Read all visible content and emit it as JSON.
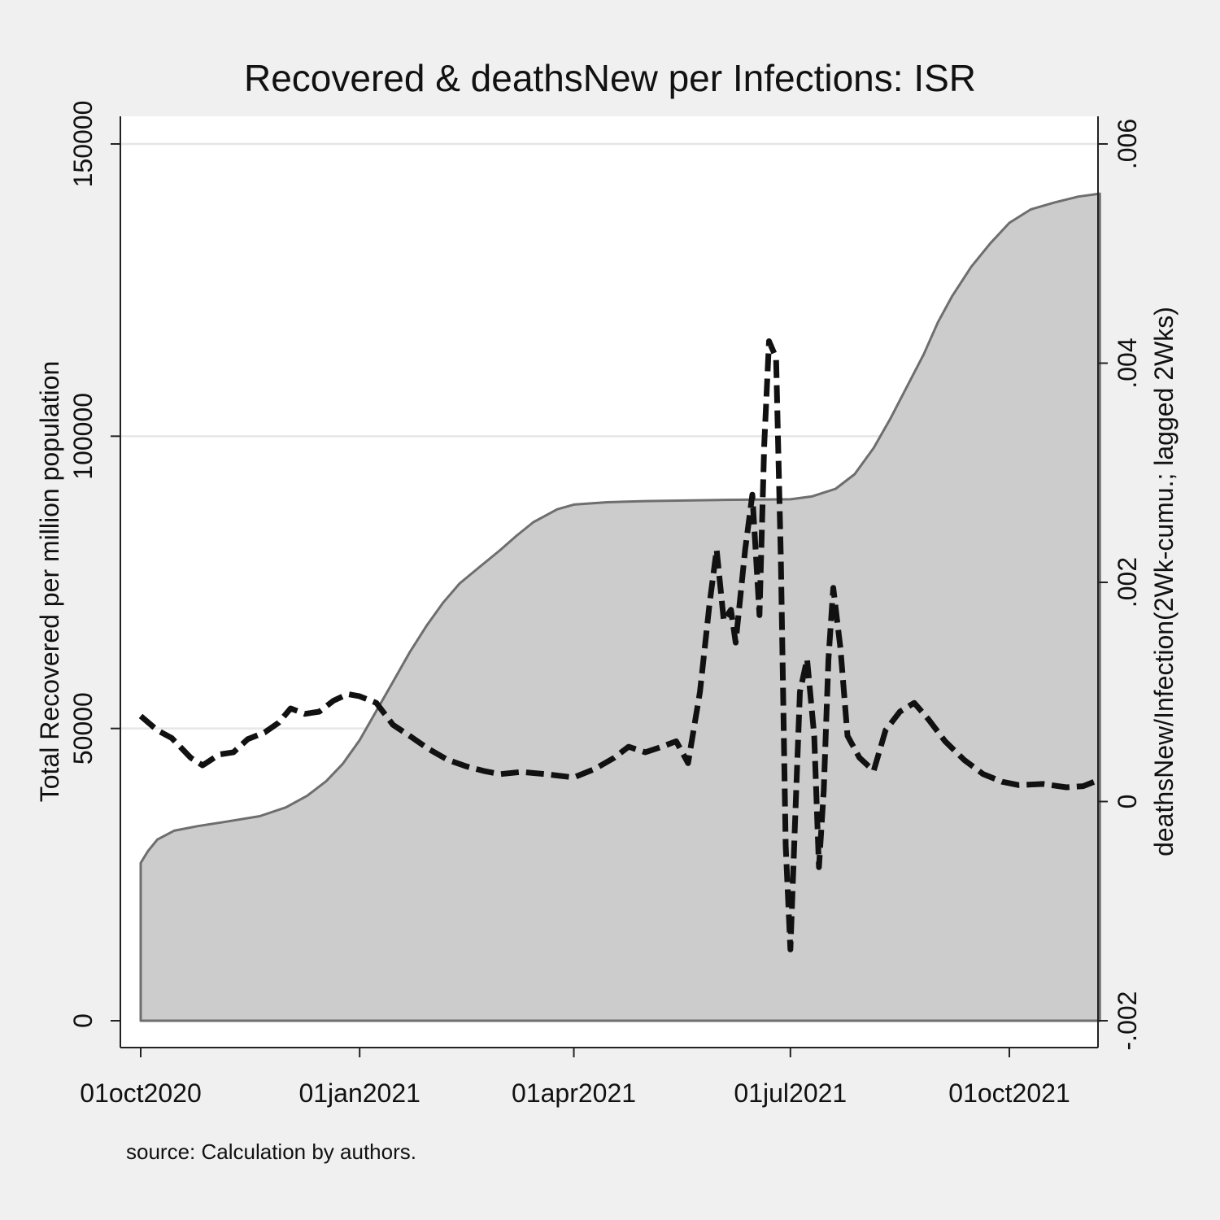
{
  "chart_data": {
    "type": "area+line",
    "title": "Recovered & deathsNew per Infections: ISR",
    "note": "source: Calculation by authors.",
    "y_left": {
      "label": "Total Recovered per million population",
      "range": [
        0,
        150000
      ],
      "ticks": [
        0,
        50000,
        100000,
        150000
      ],
      "tick_labels": [
        "0",
        "50000",
        "100000",
        "150000"
      ],
      "gridlines": true
    },
    "y_right": {
      "label": "deathsNew/Infection(2Wk-cumu.; lagged 2Wks)",
      "range": [
        -0.002,
        0.006
      ],
      "ticks": [
        -0.002,
        0,
        0.002,
        0.004,
        0.006
      ],
      "tick_labels": [
        "-.002",
        "0",
        ".002",
        ".004",
        ".006"
      ]
    },
    "x_axis": {
      "range": [
        "2020-10-01",
        "2021-11-08"
      ],
      "ticks": [
        "2020-10-01",
        "2021-01-01",
        "2021-04-01",
        "2021-07-01",
        "2021-10-01"
      ],
      "tick_labels": [
        "01oct2020",
        "01jan2021",
        "01apr2021",
        "01jul2021",
        "01oct2021"
      ]
    },
    "series": [
      {
        "name": "Total Recovered per million population",
        "type": "area",
        "axis": "left",
        "fill_color": "#cccccc",
        "line_color": "#6e6e6e",
        "points": [
          [
            "2020-10-01",
            27000
          ],
          [
            "2020-10-04",
            29000
          ],
          [
            "2020-10-08",
            31000
          ],
          [
            "2020-10-15",
            32500
          ],
          [
            "2020-10-25",
            33300
          ],
          [
            "2020-11-05",
            34000
          ],
          [
            "2020-11-20",
            35000
          ],
          [
            "2020-12-01",
            36500
          ],
          [
            "2020-12-10",
            38500
          ],
          [
            "2020-12-18",
            41000
          ],
          [
            "2020-12-25",
            44000
          ],
          [
            "2021-01-01",
            48000
          ],
          [
            "2021-01-08",
            53000
          ],
          [
            "2021-01-15",
            58000
          ],
          [
            "2021-01-22",
            63000
          ],
          [
            "2021-01-29",
            67500
          ],
          [
            "2021-02-05",
            71500
          ],
          [
            "2021-02-12",
            74800
          ],
          [
            "2021-02-20",
            77500
          ],
          [
            "2021-03-01",
            80500
          ],
          [
            "2021-03-08",
            83000
          ],
          [
            "2021-03-15",
            85300
          ],
          [
            "2021-03-25",
            87500
          ],
          [
            "2021-04-01",
            88300
          ],
          [
            "2021-04-15",
            88700
          ],
          [
            "2021-05-01",
            88900
          ],
          [
            "2021-06-01",
            89100
          ],
          [
            "2021-07-01",
            89200
          ],
          [
            "2021-07-10",
            89700
          ],
          [
            "2021-07-20",
            91000
          ],
          [
            "2021-07-28",
            93500
          ],
          [
            "2021-08-05",
            98000
          ],
          [
            "2021-08-12",
            103000
          ],
          [
            "2021-08-19",
            108500
          ],
          [
            "2021-08-26",
            114000
          ],
          [
            "2021-09-01",
            119500
          ],
          [
            "2021-09-07",
            124000
          ],
          [
            "2021-09-15",
            129000
          ],
          [
            "2021-09-23",
            133000
          ],
          [
            "2021-10-01",
            136500
          ],
          [
            "2021-10-10",
            138800
          ],
          [
            "2021-10-20",
            140000
          ],
          [
            "2021-10-30",
            141000
          ],
          [
            "2021-11-08",
            141500
          ]
        ]
      },
      {
        "name": "deathsNew/Infection(2Wk-cumu.; lagged 2Wks)",
        "type": "line",
        "axis": "right",
        "line_color": "#111111",
        "dashed": true,
        "points": [
          [
            "2020-10-01",
            0.00078
          ],
          [
            "2020-10-08",
            0.00065
          ],
          [
            "2020-10-14",
            0.00058
          ],
          [
            "2020-10-22",
            0.0004
          ],
          [
            "2020-10-27",
            0.00033
          ],
          [
            "2020-11-03",
            0.00043
          ],
          [
            "2020-11-09",
            0.00045
          ],
          [
            "2020-11-15",
            0.00057
          ],
          [
            "2020-11-22",
            0.00063
          ],
          [
            "2020-11-28",
            0.00072
          ],
          [
            "2020-12-03",
            0.00085
          ],
          [
            "2020-12-09",
            0.0008
          ],
          [
            "2020-12-15",
            0.00082
          ],
          [
            "2020-12-21",
            0.00092
          ],
          [
            "2020-12-27",
            0.00098
          ],
          [
            "2021-01-01",
            0.00096
          ],
          [
            "2021-01-08",
            0.0009
          ],
          [
            "2021-01-15",
            0.0007
          ],
          [
            "2021-01-22",
            0.0006
          ],
          [
            "2021-01-30",
            0.00048
          ],
          [
            "2021-02-07",
            0.00038
          ],
          [
            "2021-02-15",
            0.00032
          ],
          [
            "2021-02-22",
            0.00028
          ],
          [
            "2021-03-01",
            0.00025
          ],
          [
            "2021-03-10",
            0.00027
          ],
          [
            "2021-03-20",
            0.00025
          ],
          [
            "2021-04-01",
            0.00022
          ],
          [
            "2021-04-10",
            0.0003
          ],
          [
            "2021-04-18",
            0.0004
          ],
          [
            "2021-04-24",
            0.0005
          ],
          [
            "2021-05-01",
            0.00045
          ],
          [
            "2021-05-08",
            0.0005
          ],
          [
            "2021-05-14",
            0.00055
          ],
          [
            "2021-05-19",
            0.00035
          ],
          [
            "2021-05-24",
            0.001
          ],
          [
            "2021-05-28",
            0.0018
          ],
          [
            "2021-05-31",
            0.0023
          ],
          [
            "2021-06-03",
            0.00165
          ],
          [
            "2021-06-06",
            0.00175
          ],
          [
            "2021-06-08",
            0.00145
          ],
          [
            "2021-06-12",
            0.0023
          ],
          [
            "2021-06-15",
            0.0028
          ],
          [
            "2021-06-18",
            0.0017
          ],
          [
            "2021-06-20",
            0.00325
          ],
          [
            "2021-06-22",
            0.0042
          ],
          [
            "2021-06-25",
            0.00405
          ],
          [
            "2021-06-27",
            0.0022
          ],
          [
            "2021-06-29",
            -0.0004
          ],
          [
            "2021-07-01",
            -0.00135
          ],
          [
            "2021-07-03",
            -0.00015
          ],
          [
            "2021-07-05",
            0.001
          ],
          [
            "2021-07-08",
            0.0013
          ],
          [
            "2021-07-11",
            0.0006
          ],
          [
            "2021-07-13",
            -0.0006
          ],
          [
            "2021-07-15",
            0.0001
          ],
          [
            "2021-07-17",
            0.0013
          ],
          [
            "2021-07-19",
            0.00195
          ],
          [
            "2021-07-22",
            0.0014
          ],
          [
            "2021-07-25",
            0.0006
          ],
          [
            "2021-07-30",
            0.0004
          ],
          [
            "2021-08-05",
            0.00028
          ],
          [
            "2021-08-10",
            0.00065
          ],
          [
            "2021-08-16",
            0.00082
          ],
          [
            "2021-08-22",
            0.0009
          ],
          [
            "2021-08-28",
            0.00075
          ],
          [
            "2021-09-04",
            0.00055
          ],
          [
            "2021-09-12",
            0.00038
          ],
          [
            "2021-09-20",
            0.00025
          ],
          [
            "2021-09-28",
            0.00018
          ],
          [
            "2021-10-05",
            0.00015
          ],
          [
            "2021-10-15",
            0.00016
          ],
          [
            "2021-10-25",
            0.00013
          ],
          [
            "2021-11-01",
            0.00014
          ],
          [
            "2021-11-08",
            0.0002
          ]
        ]
      }
    ]
  }
}
